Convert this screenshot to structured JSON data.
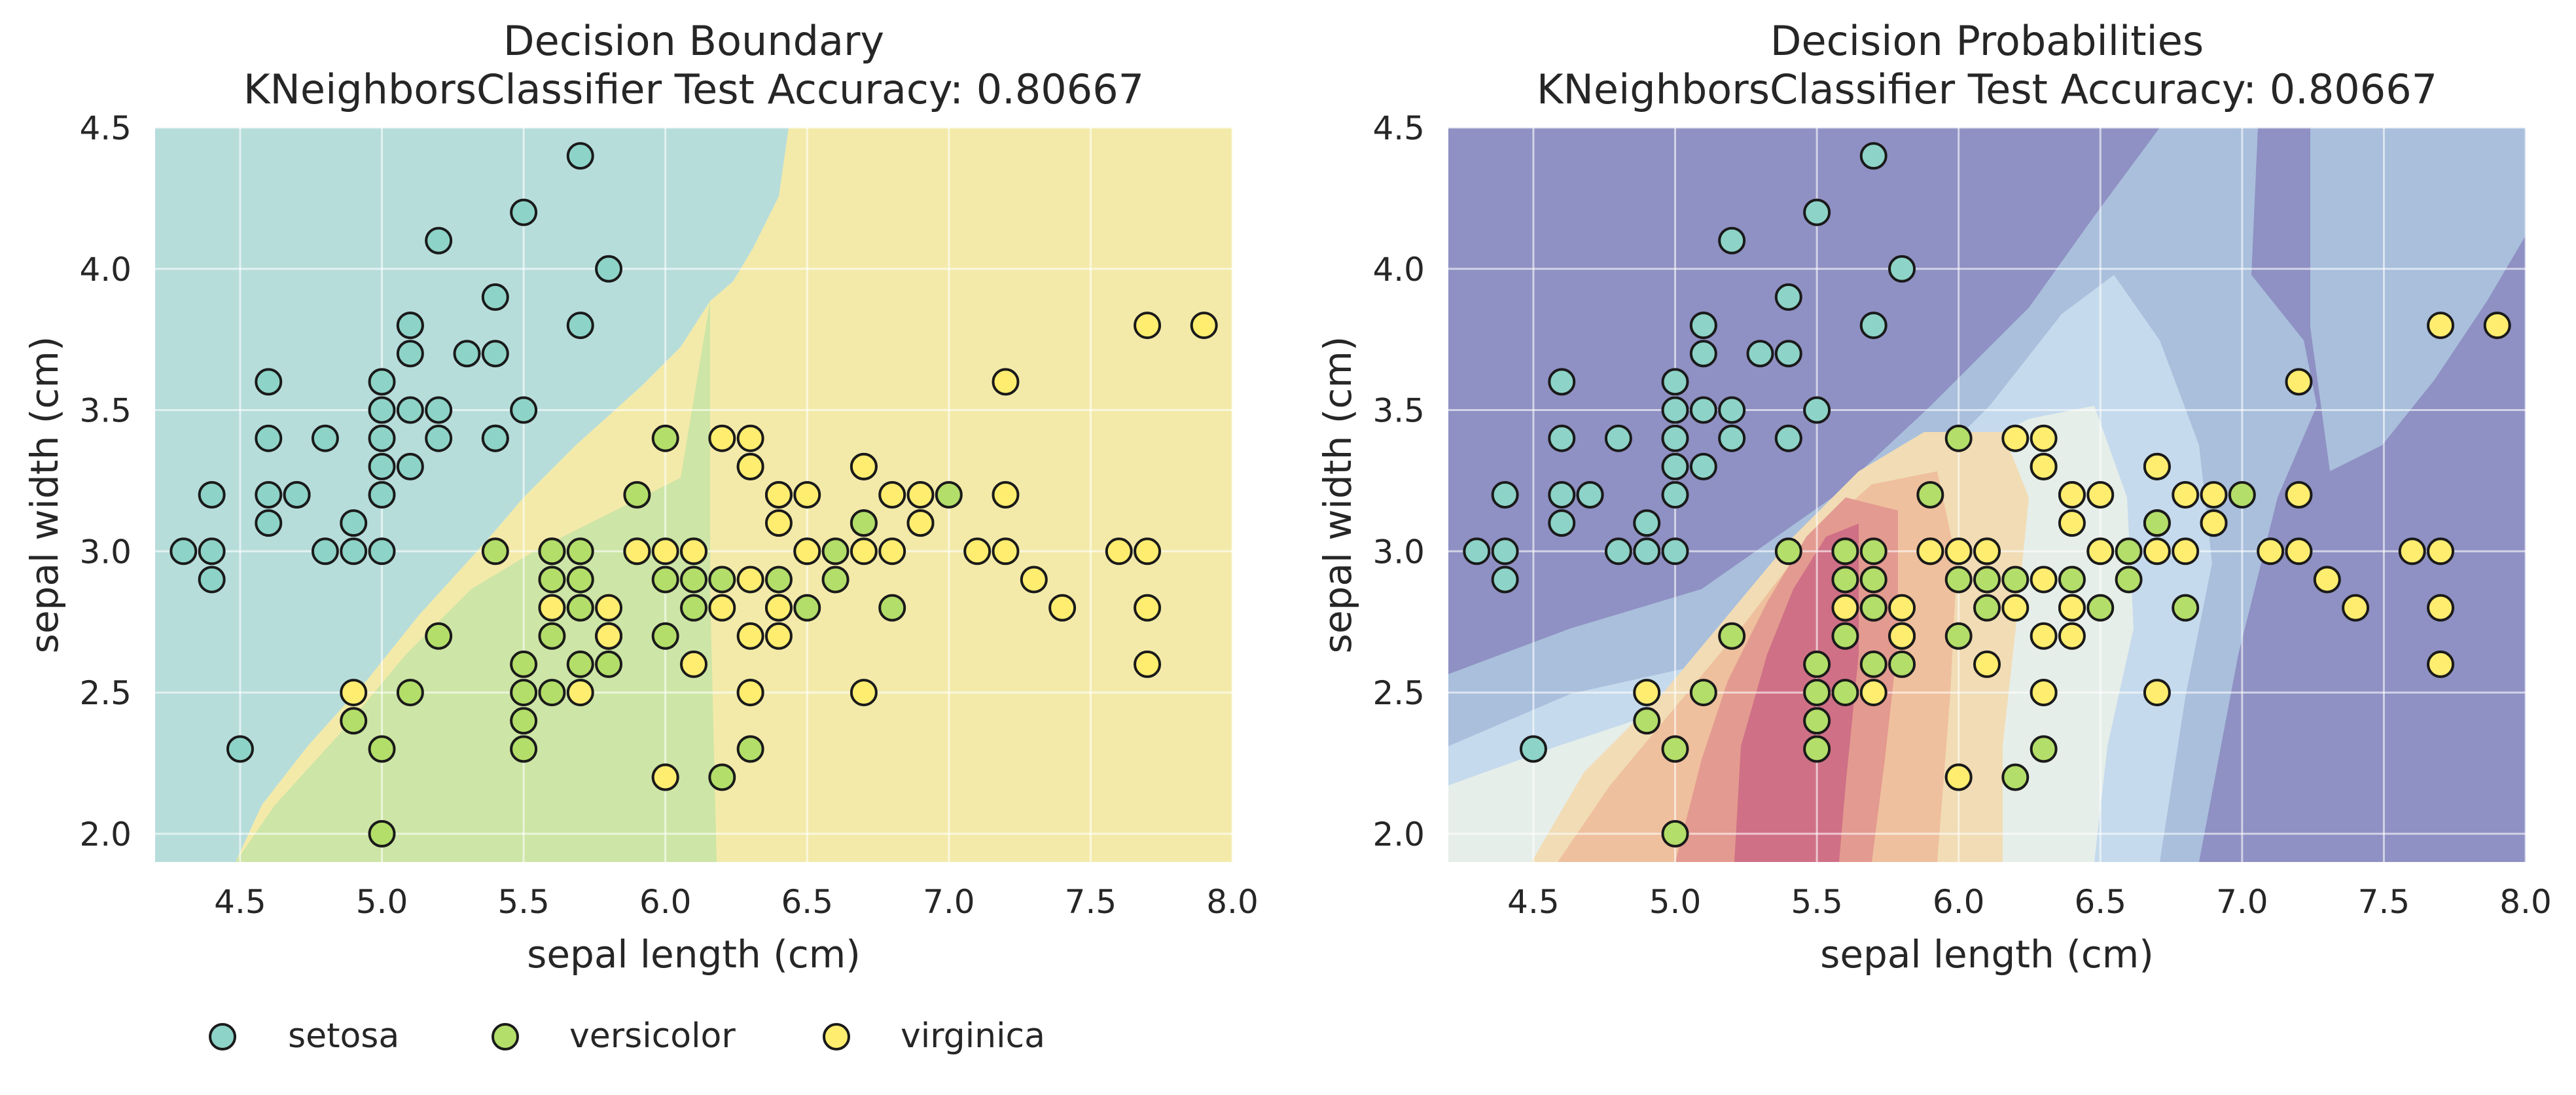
{
  "colors": {
    "setosa": "#8dd3c7",
    "versicolor": "#b3de69",
    "virginica": "#ffed6f",
    "region_setosa": "#b7dddb",
    "region_versicolor": "#cde5a6",
    "region_virginica": "#f3eaaa",
    "marker_edge": "#1a1a1a",
    "grid": "#ffffff"
  },
  "legend": {
    "placement": "bottom-left",
    "entries": [
      {
        "label": "setosa",
        "color": "#8dd3c7"
      },
      {
        "label": "versicolor",
        "color": "#b3de69"
      },
      {
        "label": "virginica",
        "color": "#ffed6f"
      }
    ]
  },
  "chart_data": [
    {
      "type": "scatter",
      "title": "Decision Boundary",
      "subtitle": "KNeighborsClassifier Test Accuracy: 0.80667",
      "xlabel": "sepal length (cm)",
      "ylabel": "sepal width (cm)",
      "xlim": [
        4.2,
        8.0
      ],
      "ylim": [
        1.9,
        4.5
      ],
      "xticks": [
        "4.5",
        "5.0",
        "5.5",
        "6.0",
        "6.5",
        "7.0",
        "7.5",
        "8.0"
      ],
      "yticks": [
        "2.0",
        "2.5",
        "3.0",
        "3.5",
        "4.0",
        "4.5"
      ],
      "grid": true,
      "background": "predicted class regions (setosa, versicolor, virginica)"
    },
    {
      "type": "scatter",
      "title": "Decision Probabilities",
      "subtitle": "KNeighborsClassifier Test Accuracy: 0.80667",
      "xlabel": "sepal length (cm)",
      "ylabel": "sepal width (cm)",
      "xlim": [
        4.2,
        8.0
      ],
      "ylim": [
        1.9,
        4.5
      ],
      "xticks": [
        "4.5",
        "5.0",
        "5.5",
        "6.0",
        "6.5",
        "7.0",
        "7.5",
        "8.0"
      ],
      "yticks": [
        "2.0",
        "2.5",
        "3.0",
        "3.5",
        "4.0",
        "4.5"
      ],
      "grid": true,
      "background": "predicted probability heatmap"
    }
  ],
  "points": {
    "setosa": [
      [
        5.1,
        3.5
      ],
      [
        4.9,
        3.0
      ],
      [
        4.7,
        3.2
      ],
      [
        4.6,
        3.1
      ],
      [
        5.0,
        3.6
      ],
      [
        5.4,
        3.9
      ],
      [
        4.6,
        3.4
      ],
      [
        5.0,
        3.4
      ],
      [
        4.4,
        2.9
      ],
      [
        4.9,
        3.1
      ],
      [
        5.4,
        3.7
      ],
      [
        4.8,
        3.4
      ],
      [
        4.8,
        3.0
      ],
      [
        4.3,
        3.0
      ],
      [
        5.8,
        4.0
      ],
      [
        5.7,
        4.4
      ],
      [
        5.1,
        3.8
      ],
      [
        5.7,
        3.8
      ],
      [
        5.4,
        3.4
      ],
      [
        5.1,
        3.7
      ],
      [
        4.6,
        3.6
      ],
      [
        5.1,
        3.3
      ],
      [
        5.0,
        3.0
      ],
      [
        5.2,
        3.5
      ],
      [
        5.2,
        3.4
      ],
      [
        4.7,
        3.2
      ],
      [
        5.4,
        3.4
      ],
      [
        5.2,
        4.1
      ],
      [
        5.5,
        4.2
      ],
      [
        5.0,
        3.2
      ],
      [
        5.5,
        3.5
      ],
      [
        4.4,
        3.0
      ],
      [
        5.0,
        3.5
      ],
      [
        4.5,
        2.3
      ],
      [
        4.4,
        3.2
      ],
      [
        5.1,
        3.8
      ],
      [
        5.3,
        3.7
      ],
      [
        4.6,
        3.2
      ],
      [
        5.0,
        3.3
      ]
    ],
    "versicolor": [
      [
        7.0,
        3.2
      ],
      [
        6.4,
        3.2
      ],
      [
        6.9,
        3.1
      ],
      [
        5.5,
        2.3
      ],
      [
        6.5,
        2.8
      ],
      [
        5.7,
        2.8
      ],
      [
        6.3,
        3.3
      ],
      [
        4.9,
        2.4
      ],
      [
        6.6,
        2.9
      ],
      [
        5.2,
        2.7
      ],
      [
        5.0,
        2.0
      ],
      [
        5.9,
        3.0
      ],
      [
        6.0,
        2.2
      ],
      [
        6.1,
        2.9
      ],
      [
        5.6,
        2.9
      ],
      [
        6.7,
        3.1
      ],
      [
        5.6,
        3.0
      ],
      [
        5.8,
        2.7
      ],
      [
        6.2,
        2.2
      ],
      [
        5.6,
        2.5
      ],
      [
        5.9,
        3.2
      ],
      [
        6.1,
        2.8
      ],
      [
        6.3,
        2.5
      ],
      [
        6.4,
        2.9
      ],
      [
        6.6,
        3.0
      ],
      [
        6.8,
        2.8
      ],
      [
        6.0,
        2.9
      ],
      [
        5.7,
        2.6
      ],
      [
        5.5,
        2.4
      ],
      [
        5.8,
        2.7
      ],
      [
        6.0,
        2.7
      ],
      [
        5.4,
        3.0
      ],
      [
        6.0,
        3.4
      ],
      [
        6.7,
        3.1
      ],
      [
        6.3,
        2.3
      ],
      [
        5.6,
        3.0
      ],
      [
        5.5,
        2.5
      ],
      [
        5.5,
        2.6
      ],
      [
        6.1,
        3.0
      ],
      [
        5.8,
        2.6
      ],
      [
        5.0,
        2.3
      ],
      [
        5.6,
        2.7
      ],
      [
        5.7,
        3.0
      ],
      [
        5.7,
        2.9
      ],
      [
        6.2,
        2.9
      ],
      [
        5.1,
        2.5
      ],
      [
        5.7,
        2.8
      ]
    ],
    "virginica": [
      [
        6.3,
        3.3
      ],
      [
        7.1,
        3.0
      ],
      [
        6.3,
        2.9
      ],
      [
        6.5,
        3.0
      ],
      [
        7.6,
        3.0
      ],
      [
        4.9,
        2.5
      ],
      [
        7.3,
        2.9
      ],
      [
        6.7,
        2.5
      ],
      [
        7.2,
        3.6
      ],
      [
        6.5,
        3.2
      ],
      [
        6.4,
        2.7
      ],
      [
        6.8,
        3.0
      ],
      [
        5.7,
        2.5
      ],
      [
        5.8,
        2.8
      ],
      [
        6.4,
        3.2
      ],
      [
        7.7,
        3.8
      ],
      [
        7.7,
        2.6
      ],
      [
        6.0,
        2.2
      ],
      [
        6.9,
        3.2
      ],
      [
        5.6,
        2.8
      ],
      [
        7.7,
        2.8
      ],
      [
        6.3,
        2.7
      ],
      [
        6.7,
        3.3
      ],
      [
        7.2,
        3.2
      ],
      [
        6.2,
        2.8
      ],
      [
        6.1,
        3.0
      ],
      [
        6.4,
        2.8
      ],
      [
        7.2,
        3.0
      ],
      [
        7.4,
        2.8
      ],
      [
        7.9,
        3.8
      ],
      [
        6.4,
        2.8
      ],
      [
        6.1,
        2.6
      ],
      [
        7.7,
        3.0
      ],
      [
        6.3,
        3.4
      ],
      [
        6.4,
        3.1
      ],
      [
        6.0,
        3.0
      ],
      [
        6.9,
        3.1
      ],
      [
        6.7,
        3.0
      ],
      [
        5.8,
        2.7
      ],
      [
        6.8,
        3.2
      ],
      [
        6.7,
        3.3
      ],
      [
        6.3,
        2.5
      ],
      [
        6.5,
        3.0
      ],
      [
        6.2,
        3.4
      ],
      [
        5.9,
        3.0
      ]
    ]
  }
}
